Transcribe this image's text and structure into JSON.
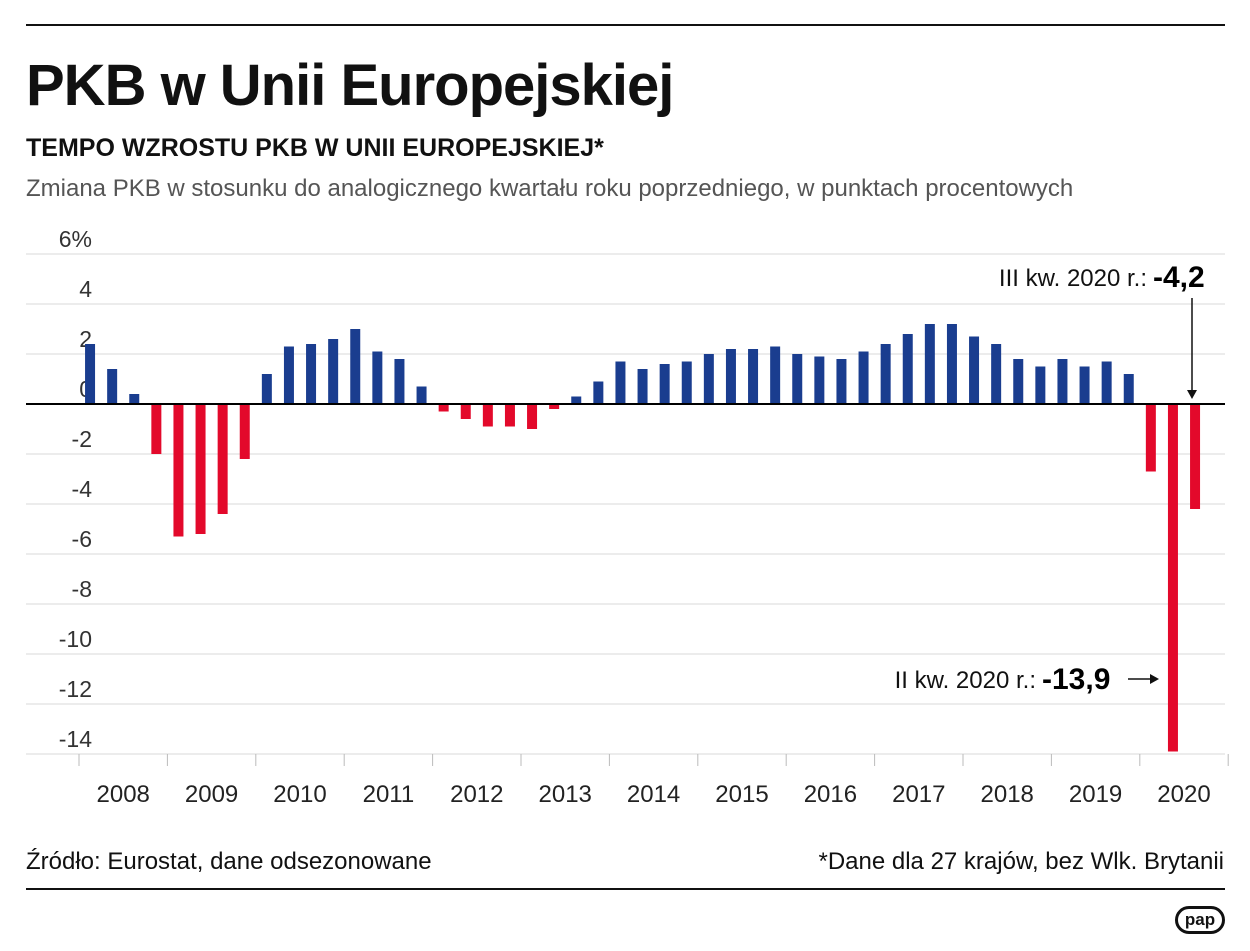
{
  "header": {
    "title": "PKB w Unii Europejskiej",
    "subtitle": "TEMPO WZROSTU PKB W UNII EUROPEJSKIEJ*",
    "description": "Zmiana PKB w stosunku do analogicznego kwartału roku poprzedniego, w punktach procentowych"
  },
  "footer": {
    "source": "Źródło: Eurostat, dane odsezonowane",
    "footnote": "*Dane dla 27 krajów, bez Wlk. Brytanii",
    "logo": "pap"
  },
  "colors": {
    "positive": "#1a3d8f",
    "negative": "#e3092b",
    "grid": "#d9d9d9",
    "axis": "#000000"
  },
  "chart_data": {
    "type": "bar",
    "ylim": [
      -14,
      6
    ],
    "y_ticks": [
      6,
      4,
      2,
      0,
      -2,
      -4,
      -6,
      -8,
      -10,
      -12,
      -14
    ],
    "y_tick_labels": [
      "6%",
      "4",
      "2",
      "0",
      "-2",
      "-4",
      "-6",
      "-8",
      "-10",
      "-12",
      "-14"
    ],
    "years": [
      "2008",
      "2009",
      "2010",
      "2011",
      "2012",
      "2013",
      "2014",
      "2015",
      "2016",
      "2017",
      "2018",
      "2019",
      "2020"
    ],
    "values": [
      2.4,
      1.4,
      0.4,
      -2.0,
      -5.3,
      -5.2,
      -4.4,
      -2.2,
      1.2,
      2.3,
      2.4,
      2.6,
      3.0,
      2.1,
      1.8,
      0.7,
      -0.3,
      -0.6,
      -0.9,
      -0.9,
      -1.0,
      -0.2,
      0.3,
      0.9,
      1.7,
      1.4,
      1.6,
      1.7,
      2.0,
      2.2,
      2.2,
      2.3,
      2.0,
      1.9,
      1.8,
      2.1,
      2.4,
      2.8,
      3.2,
      3.2,
      2.7,
      2.4,
      1.8,
      1.5,
      1.8,
      1.5,
      1.7,
      1.2,
      -2.7,
      -13.9,
      -4.2
    ],
    "grid": true,
    "annotations": [
      {
        "label": "III kw. 2020 r.:",
        "value": "-4,2"
      },
      {
        "label": "II kw. 2020 r.:",
        "value": "-13,9"
      }
    ]
  }
}
